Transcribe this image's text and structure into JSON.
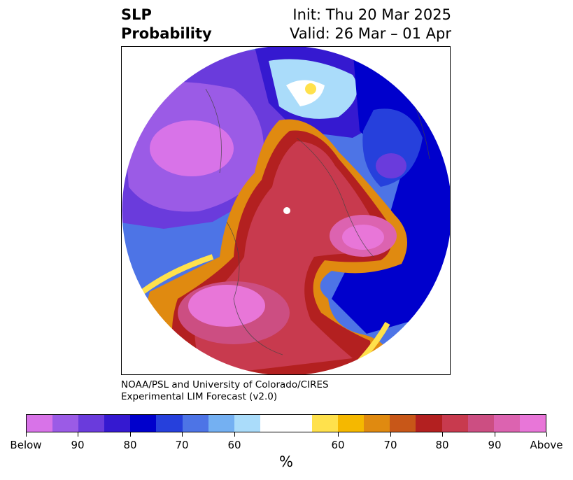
{
  "title": {
    "left_line1": "SLP",
    "left_line2": "Probability",
    "right_line1": "Init: Thu 20 Mar 2025",
    "right_line2": "Valid: 26 Mar – 01 Apr"
  },
  "credit": {
    "line1": "NOAA/PSL and University of Colorado/CIRES",
    "line2": "Experimental LIM Forecast (v2.0)"
  },
  "colorbar": {
    "unit": "%",
    "colors": [
      "#d873e8",
      "#9b5be6",
      "#6a3bdc",
      "#3519d0",
      "#0000cc",
      "#2640dc",
      "#4d74e6",
      "#74b0f2",
      "#aadcfa",
      "#ffffff",
      "#ffe14c",
      "#f5b800",
      "#e08a10",
      "#c85718",
      "#b32020",
      "#c83a4e",
      "#cc4e82",
      "#dc63b0",
      "#e876d8"
    ],
    "tick_labels": [
      "Below",
      "90",
      "80",
      "70",
      "60",
      "60",
      "70",
      "80",
      "90",
      "Above"
    ]
  }
}
